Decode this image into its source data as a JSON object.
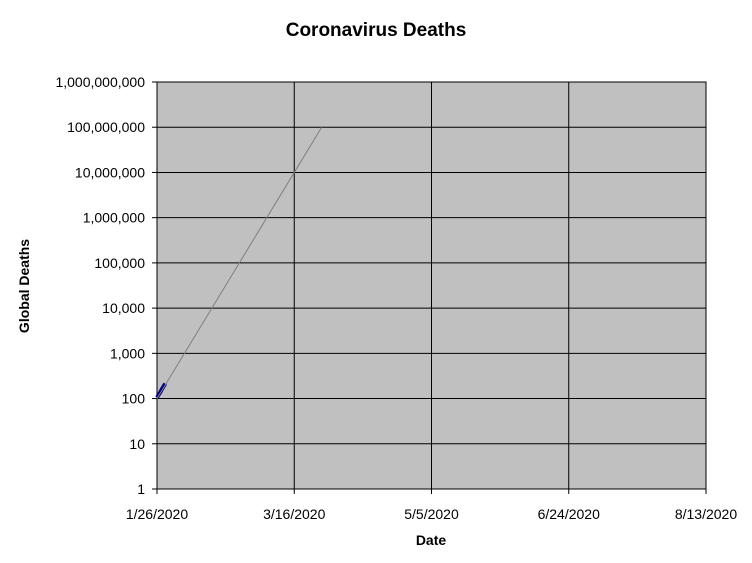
{
  "chart_data": {
    "type": "line",
    "title": "Coronavirus Deaths",
    "xlabel": "Date",
    "ylabel": "Global Deaths",
    "x_axis": {
      "type": "date",
      "range": [
        "1/26/2020",
        "8/13/2020"
      ],
      "ticks": [
        "1/26/2020",
        "3/16/2020",
        "5/5/2020",
        "6/24/2020",
        "8/13/2020"
      ]
    },
    "y_axis": {
      "scale": "log",
      "range": [
        1,
        1000000000
      ],
      "ticks": [
        "1",
        "10",
        "100",
        "1,000",
        "10,000",
        "100,000",
        "1,000,000",
        "10,000,000",
        "100,000,000",
        "1,000,000,000"
      ]
    },
    "grid": true,
    "plot_background": "#c0c0c0",
    "series": [
      {
        "color": "#000080",
        "style": "thick",
        "points": [
          {
            "x": "1/26/2020",
            "y": 106
          },
          {
            "x": "1/27/2020",
            "y": 132
          },
          {
            "x": "1/28/2020",
            "y": 170
          },
          {
            "x": "1/29/2020",
            "y": 213
          }
        ]
      },
      {
        "color": "#808080",
        "style": "thin",
        "points": [
          {
            "x": "1/26/2020",
            "y": 100
          },
          {
            "x": "3/16/2020",
            "y": 10000000
          },
          {
            "x": "3/26/2020",
            "y": 100000000
          }
        ]
      }
    ]
  }
}
